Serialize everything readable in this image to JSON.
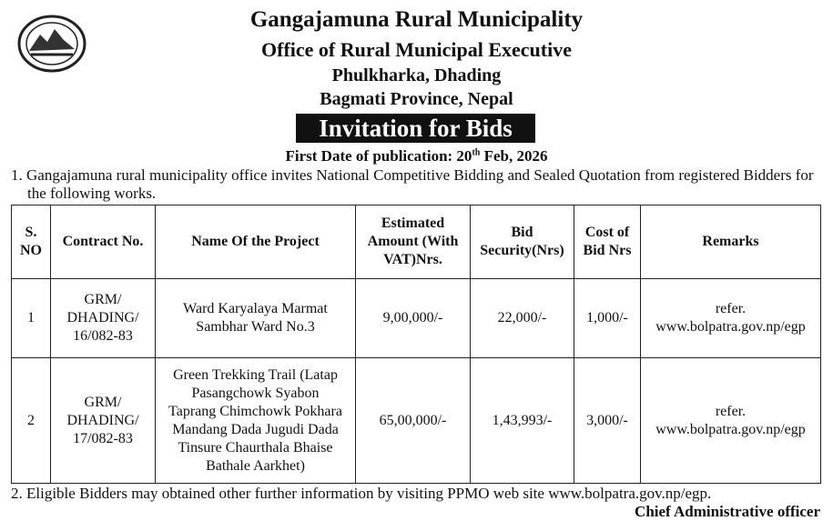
{
  "header": {
    "title": "Gangajamuna Rural Municipality",
    "office": "Office of Rural Municipal Executive",
    "address1": "Phulkharka, Dhading",
    "address2": "Bagmati Province, Nepal",
    "notice_title": "Invitation for Bids",
    "publication": {
      "label": "First Date of publication: 20",
      "sup": "th",
      "rest": " Feb, 2026"
    }
  },
  "paragraphs": [
    "1. Gangajamuna rural municipality office invites National Competitive Bidding  and Sealed Quotation from registered Bidders for the following works.",
    "2. Eligible Bidders may obtained other further information by visiting PPMO web site www.bolpatra.gov.np/egp."
  ],
  "table": {
    "columns": [
      "S. NO",
      "Contract No.",
      "Name Of the Project",
      "Estimated Amount (With VAT)Nrs.",
      "Bid Security(Nrs)",
      "Cost of Bid Nrs",
      "Remarks"
    ],
    "rows": [
      [
        "1",
        [
          "GRM/",
          "DHADING/",
          "16/082-83"
        ],
        [
          "Ward Karyalaya Marmat",
          "Sambhar Ward No.3"
        ],
        "9,00,000/-",
        "22,000/-",
        "1,000/-",
        [
          "refer.",
          "www.bolpatra.gov.np/egp"
        ]
      ],
      [
        "2",
        [
          "GRM/",
          "DHADING/",
          "17/082-83"
        ],
        [
          "Green Trekking Trail (Latap",
          "Pasangchowk Syabon",
          "Taprang Chimchowk Pokhara",
          "Mandang Dada Jugudi Dada",
          "Tinsure Chaurthala Bhaise",
          "Bathale Aarkhet)"
        ],
        "65,00,000/-",
        "1,43,993/-",
        "3,000/-",
        [
          "refer.",
          "www.bolpatra.gov.np/egp"
        ]
      ]
    ]
  },
  "signature": "Chief Administrative officer"
}
